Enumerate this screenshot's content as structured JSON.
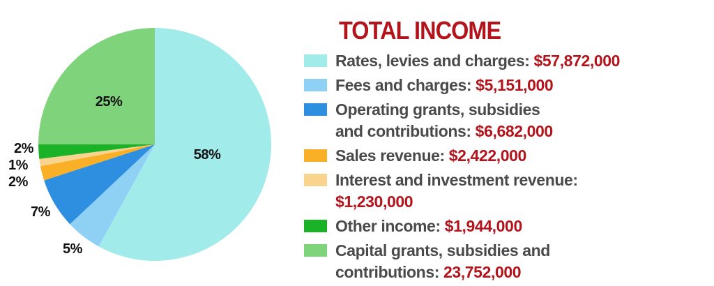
{
  "chart_data": {
    "type": "pie",
    "title": "TOTAL INCOME",
    "slices": [
      {
        "label": "Rates, levies and charges:",
        "amount": "$57,872,000",
        "value": 58,
        "pct_label": "58%",
        "color": "#a2ebeb"
      },
      {
        "label": "Fees and charges:",
        "amount": "$5,151,000",
        "value": 5,
        "pct_label": "5%",
        "color": "#8fd0f5"
      },
      {
        "label": "Operating grants, subsidies",
        "label_line2": "and contributions:",
        "amount": "$6,682,000",
        "value": 7,
        "pct_label": "7%",
        "color": "#2e8fe0"
      },
      {
        "label": "Sales revenue:",
        "amount": "$2,422,000",
        "value": 2,
        "pct_label": "2%",
        "color": "#f9b027"
      },
      {
        "label": "Interest and investment revenue:",
        "amount": "$1,230,000",
        "value": 1,
        "pct_label": "1%",
        "color": "#f8d48f"
      },
      {
        "label": "Other income:",
        "amount": "$1,944,000",
        "value": 2,
        "pct_label": "2%",
        "color": "#1ab227"
      },
      {
        "label": "Capital grants, subsidies and",
        "label_line2": "contributions:",
        "amount": "23,752,000",
        "value": 25,
        "pct_label": "25%",
        "color": "#7fd37a"
      }
    ],
    "legend_position": "right"
  }
}
